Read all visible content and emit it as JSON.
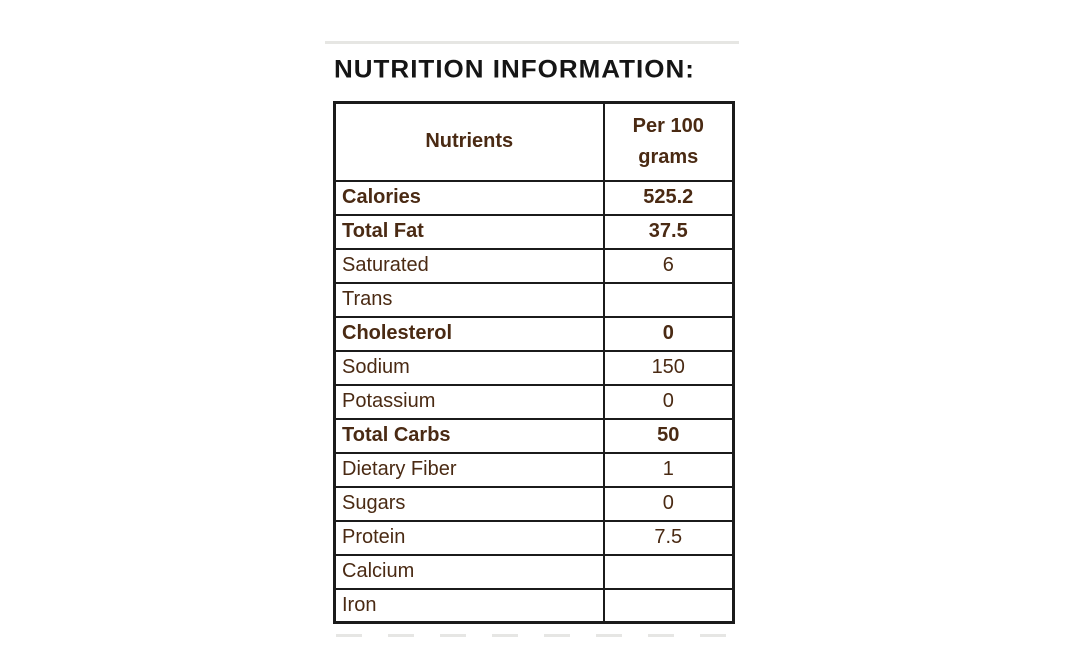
{
  "title": "NUTRITION INFORMATION:",
  "table": {
    "col1_header": "Nutrients",
    "col2_header_line1": "Per 100",
    "col2_header_line2": "grams",
    "rows": [
      {
        "nutrient": "Calories",
        "value": "525.2",
        "bold": true
      },
      {
        "nutrient": "Total Fat",
        "value": "37.5",
        "bold": true
      },
      {
        "nutrient": "Saturated",
        "value": "6",
        "bold": false
      },
      {
        "nutrient": "Trans",
        "value": "",
        "bold": false
      },
      {
        "nutrient": "Cholesterol",
        "value": "0",
        "bold": true
      },
      {
        "nutrient": "Sodium",
        "value": "150",
        "bold": false
      },
      {
        "nutrient": "Potassium",
        "value": "0",
        "bold": false
      },
      {
        "nutrient": "Total Carbs",
        "value": "50",
        "bold": true
      },
      {
        "nutrient": "Dietary Fiber",
        "value": "1",
        "bold": false
      },
      {
        "nutrient": "Sugars",
        "value": "0",
        "bold": false
      },
      {
        "nutrient": "Protein",
        "value": "7.5",
        "bold": false
      },
      {
        "nutrient": "Calcium",
        "value": "",
        "bold": false
      },
      {
        "nutrient": "Iron",
        "value": "",
        "bold": false
      }
    ]
  },
  "colors": {
    "text_brown": "#4a2a13",
    "title_black": "#151515",
    "border": "#1b1b1b",
    "background": "#ffffff"
  }
}
